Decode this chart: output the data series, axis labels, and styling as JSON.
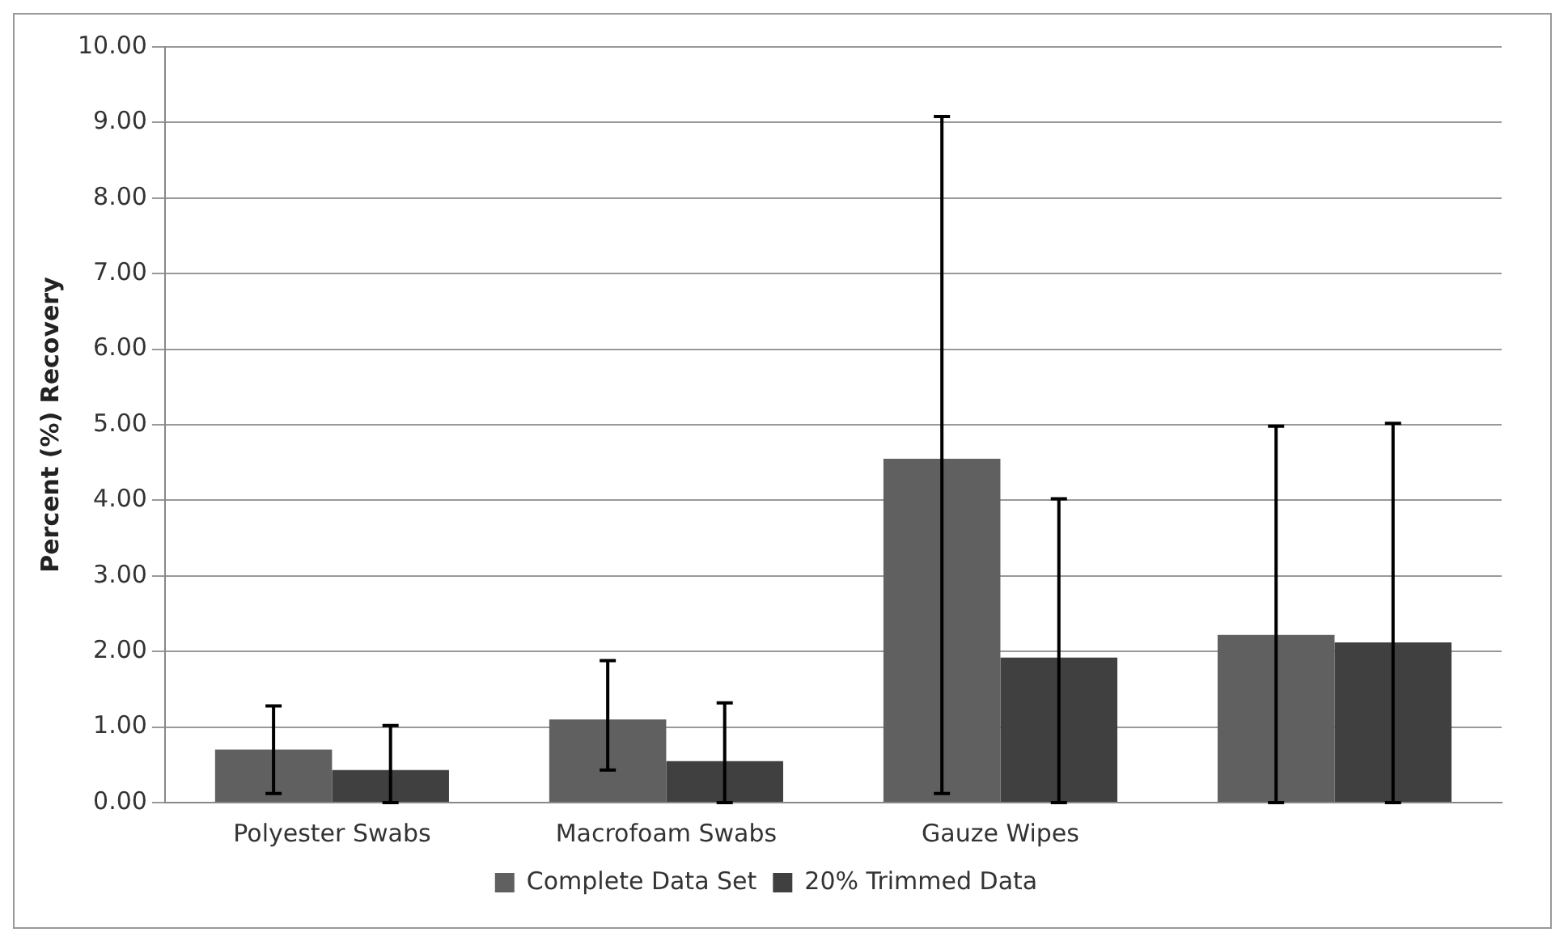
{
  "chart_data": {
    "type": "bar",
    "ylabel": "Percent (%) Recovery",
    "categories": [
      "Polyester Swabs",
      "Macrofoam Swabs",
      "Gauze Wipes",
      null
    ],
    "series": [
      {
        "name": "Complete Data Set",
        "color": "#606060",
        "values": [
          0.7,
          1.1,
          4.55,
          2.22
        ],
        "errors": [
          [
            0.12,
            1.28
          ],
          [
            0.43,
            1.88
          ],
          [
            0.12,
            9.08
          ],
          [
            0,
            4.98
          ]
        ]
      },
      {
        "name": "20% Trimmed Data",
        "color": "#404040",
        "values": [
          0.43,
          0.55,
          1.92,
          2.12
        ],
        "errors": [
          [
            0,
            1.02
          ],
          [
            0,
            1.32
          ],
          [
            0,
            4.02
          ],
          [
            0,
            5.02
          ]
        ]
      }
    ],
    "ylim": [
      0,
      10
    ],
    "yticks": [
      {
        "value": 0,
        "label": "0.00"
      },
      {
        "value": 1,
        "label": "1.00"
      },
      {
        "value": 2,
        "label": "2.00"
      },
      {
        "value": 3,
        "label": "3.00"
      },
      {
        "value": 4,
        "label": "4.00"
      },
      {
        "value": 5,
        "label": "5.00"
      },
      {
        "value": 6,
        "label": "6.00"
      },
      {
        "value": 7,
        "label": "7.00"
      },
      {
        "value": 8,
        "label": "8.00"
      },
      {
        "value": 9,
        "label": "9.00"
      },
      {
        "value": 10,
        "label": "10.00"
      }
    ],
    "grid": "y",
    "legend": "bottom"
  }
}
